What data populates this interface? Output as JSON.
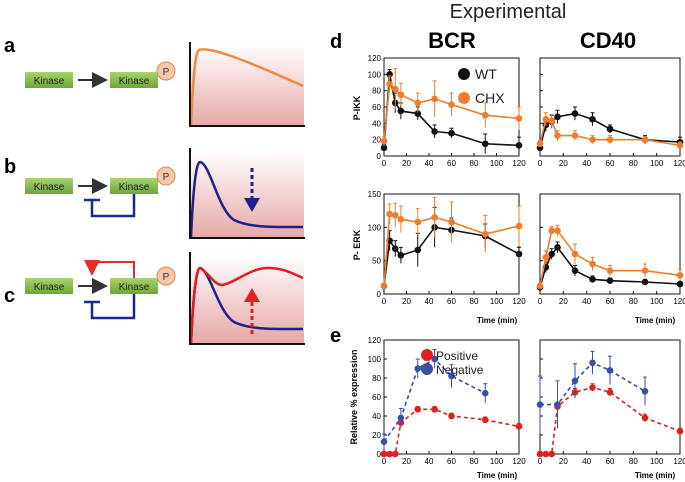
{
  "panel_letters": {
    "a": "a",
    "b": "b",
    "c": "c",
    "d": "d",
    "e": "e"
  },
  "schematic": {
    "kinase_label": "Kinase",
    "phospho_label": "P"
  },
  "header": {
    "experimental": "Experimental",
    "bcr": "BCR",
    "cd40": "CD40"
  },
  "colors": {
    "wt": "#111111",
    "chx": "#ee7d2d",
    "positive": "#e02020",
    "negative": "#3a4fa8",
    "kinase_green": "#7cb342",
    "phospho_fill": "#f6c8a8",
    "orange_curve": "#f08a3e",
    "red_curve": "#e02020",
    "blue_curve": "#20208a",
    "feedback_blue": "#1b2a8a",
    "feedback_red": "#e0302e"
  },
  "chart_data": [
    {
      "type": "line",
      "id": "bcr-pikk",
      "title": "",
      "xlabel": "",
      "ylabel": "P-IKK",
      "x": [
        0,
        5,
        10,
        15,
        30,
        45,
        60,
        90,
        120
      ],
      "ylim": [
        0,
        120
      ],
      "xlim": [
        0,
        120
      ],
      "series": [
        {
          "name": "WT",
          "values": [
            10,
            100,
            65,
            55,
            52,
            30,
            28,
            15,
            13
          ]
        },
        {
          "name": "CHX",
          "values": [
            18,
            88,
            82,
            75,
            65,
            70,
            63,
            50,
            46
          ]
        }
      ],
      "legend": [
        "WT",
        "CHX"
      ]
    },
    {
      "type": "line",
      "id": "cd40-pikk",
      "title": "",
      "xlabel": "",
      "ylabel": "",
      "x": [
        0,
        5,
        10,
        15,
        30,
        45,
        60,
        90,
        120
      ],
      "ylim": [
        0,
        120
      ],
      "xlim": [
        0,
        120
      ],
      "series": [
        {
          "name": "WT",
          "values": [
            10,
            38,
            42,
            48,
            52,
            45,
            33,
            20,
            17
          ]
        },
        {
          "name": "CHX",
          "values": [
            15,
            45,
            43,
            25,
            25,
            20,
            20,
            20,
            13
          ]
        }
      ]
    },
    {
      "type": "line",
      "id": "bcr-perk",
      "title": "",
      "xlabel": "Time (min)",
      "ylabel": "P- ERK",
      "x": [
        0,
        5,
        10,
        15,
        30,
        45,
        60,
        90,
        120
      ],
      "ylim": [
        0,
        150
      ],
      "xlim": [
        0,
        120
      ],
      "series": [
        {
          "name": "WT",
          "values": [
            12,
            80,
            68,
            58,
            66,
            100,
            96,
            87,
            60
          ]
        },
        {
          "name": "CHX",
          "values": [
            12,
            120,
            118,
            112,
            108,
            115,
            108,
            90,
            102
          ]
        }
      ]
    },
    {
      "type": "line",
      "id": "cd40-perk",
      "title": "",
      "xlabel": "Time (min)",
      "ylabel": "",
      "x": [
        0,
        5,
        10,
        15,
        30,
        45,
        60,
        90,
        120
      ],
      "ylim": [
        0,
        150
      ],
      "xlim": [
        0,
        120
      ],
      "series": [
        {
          "name": "WT",
          "values": [
            10,
            40,
            60,
            70,
            35,
            22,
            20,
            18,
            15
          ]
        },
        {
          "name": "CHX",
          "values": [
            12,
            55,
            95,
            95,
            60,
            45,
            35,
            35,
            28
          ]
        }
      ]
    },
    {
      "type": "line",
      "id": "bcr-expr",
      "title": "",
      "xlabel": "Time (min)",
      "ylabel": "Relative % expression",
      "ylim": [
        0,
        120
      ],
      "xlim": [
        0,
        120
      ],
      "series": [
        {
          "name": "Positive",
          "x": [
            0,
            5,
            10,
            15,
            30,
            45,
            60,
            90,
            120
          ],
          "values": [
            0,
            0,
            0,
            33,
            47,
            47,
            40,
            36,
            29
          ]
        },
        {
          "name": "Negative",
          "x": [
            0,
            15,
            30,
            45,
            60,
            90
          ],
          "values": [
            13,
            38,
            90,
            100,
            82,
            64
          ]
        }
      ],
      "legend": [
        "Positive",
        "Negative"
      ]
    },
    {
      "type": "line",
      "id": "cd40-expr",
      "title": "",
      "xlabel": "Time (min)",
      "ylabel": "",
      "ylim": [
        0,
        120
      ],
      "xlim": [
        0,
        120
      ],
      "series": [
        {
          "name": "Positive",
          "x": [
            0,
            5,
            10,
            15,
            30,
            45,
            60,
            90,
            120
          ],
          "values": [
            0,
            0,
            0,
            50,
            65,
            70,
            65,
            38,
            24
          ]
        },
        {
          "name": "Negative",
          "x": [
            0,
            15,
            30,
            45,
            60,
            90
          ],
          "values": [
            52,
            52,
            77,
            96,
            88,
            66
          ]
        }
      ]
    }
  ],
  "axis_ticks": {
    "x": [
      "0",
      "20",
      "40",
      "60",
      "80",
      "100",
      "120"
    ],
    "y120": [
      "0",
      "20",
      "40",
      "60",
      "80",
      "100",
      "120"
    ],
    "y150": [
      "0",
      "50",
      "100",
      "150"
    ]
  }
}
